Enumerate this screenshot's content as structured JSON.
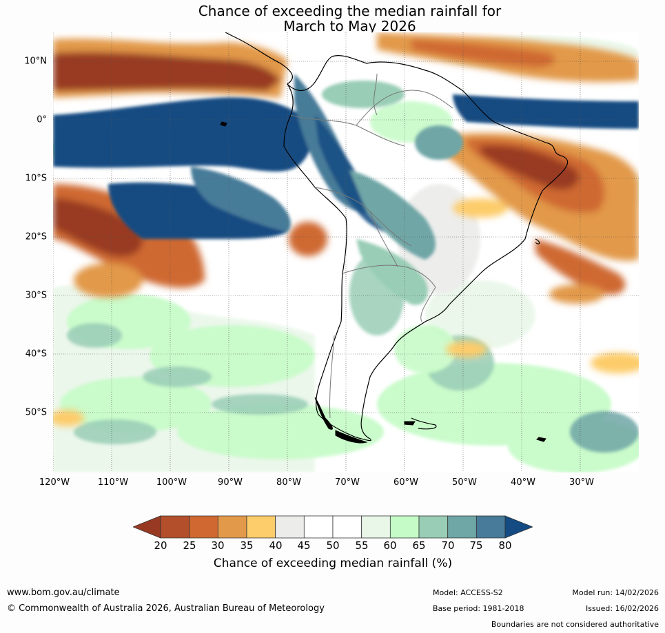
{
  "title_line1": "Chance of exceeding the median rainfall for",
  "title_line2": "March to May 2026",
  "latitude_labels": [
    "10°N",
    "0°",
    "10°S",
    "20°S",
    "30°S",
    "40°S",
    "50°S"
  ],
  "longitude_labels": [
    "120°W",
    "110°W",
    "100°W",
    "90°W",
    "80°W",
    "70°W",
    "60°W",
    "50°W",
    "40°W",
    "30°W"
  ],
  "colorbar": {
    "ticks": [
      "20",
      "25",
      "30",
      "35",
      "40",
      "45",
      "50",
      "55",
      "60",
      "65",
      "70",
      "75",
      "80"
    ],
    "colors": [
      "#983a23",
      "#b44f2b",
      "#cf6931",
      "#e29949",
      "#fdcc6b",
      "#ececea",
      "#ffffff",
      "#ffffff",
      "#e9f7e9",
      "#c5fbc6",
      "#99cdb6",
      "#6fa6a6",
      "#477b99",
      "#134b82"
    ],
    "label": "Chance of exceeding median rainfall (%)"
  },
  "footer": {
    "website": "www.bom.gov.au/climate",
    "copyright": "© Commonwealth of Australia 2026, Australian Bureau of Meteorology",
    "model": "Model: ACCESS-S2",
    "base_period": "Base period: 1981-2018",
    "model_run": "Model run: 14/02/2026",
    "issued": "Issued: 16/02/2026",
    "disclaimer": "Boundaries are not considered authoritative"
  }
}
